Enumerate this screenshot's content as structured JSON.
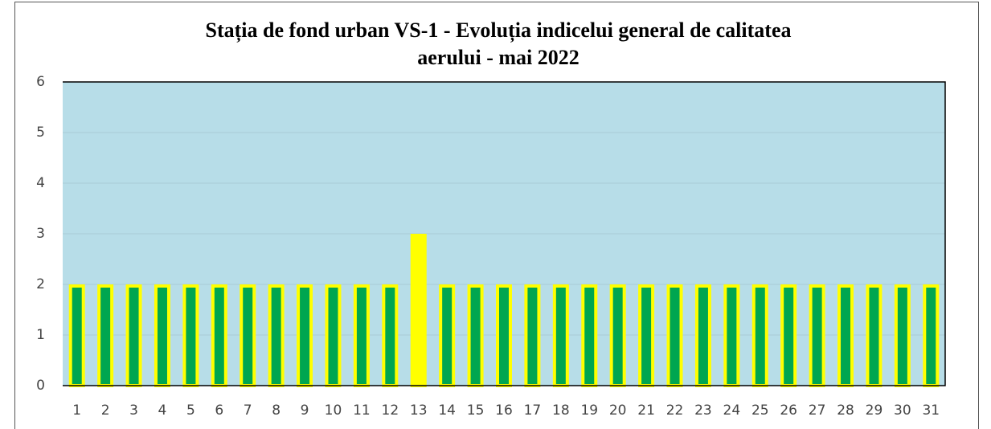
{
  "chart_data": {
    "type": "bar",
    "title": [
      "Stația de fond urban VS-1 - Evoluția indicelui general de calitatea",
      "aerului - mai 2022"
    ],
    "categories": [
      "1",
      "2",
      "3",
      "4",
      "5",
      "6",
      "7",
      "8",
      "9",
      "10",
      "11",
      "12",
      "13",
      "14",
      "15",
      "16",
      "17",
      "18",
      "19",
      "20",
      "21",
      "22",
      "23",
      "24",
      "25",
      "26",
      "27",
      "28",
      "29",
      "30",
      "31"
    ],
    "values": [
      2,
      2,
      2,
      2,
      2,
      2,
      2,
      2,
      2,
      2,
      2,
      2,
      3,
      2,
      2,
      2,
      2,
      2,
      2,
      2,
      2,
      2,
      2,
      2,
      2,
      2,
      2,
      2,
      2,
      2,
      2
    ],
    "colors": [
      "#00a650",
      "#00a650",
      "#00a650",
      "#00a650",
      "#00a650",
      "#00a650",
      "#00a650",
      "#00a650",
      "#00a650",
      "#00a650",
      "#00a650",
      "#00a650",
      "#ffff00",
      "#00a650",
      "#00a650",
      "#00a650",
      "#00a650",
      "#00a650",
      "#00a650",
      "#00a650",
      "#00a650",
      "#00a650",
      "#00a650",
      "#00a650",
      "#00a650",
      "#00a650",
      "#00a650",
      "#00a650",
      "#00a650",
      "#00a650",
      "#00a650"
    ],
    "edge_color": "#ffff00",
    "background": "#b7dde8",
    "ylim": [
      0,
      6
    ],
    "yticks": [
      0,
      1,
      2,
      3,
      4,
      5,
      6
    ],
    "grid": true
  }
}
